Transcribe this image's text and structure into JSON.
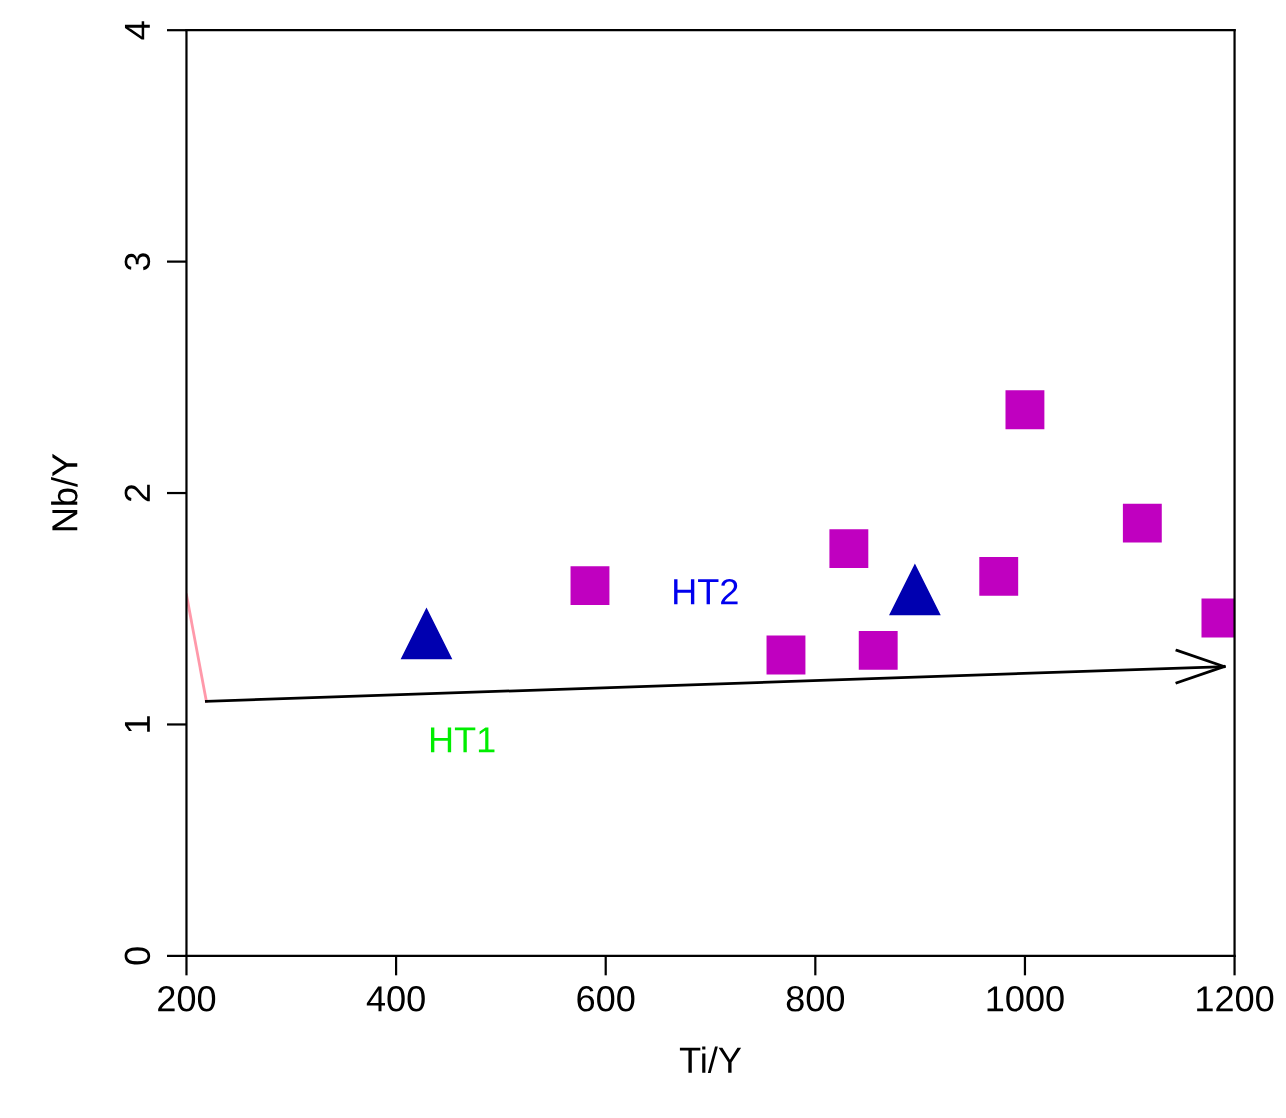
{
  "chart_data": {
    "type": "scatter",
    "xlabel": "Ti/Y",
    "ylabel": "Nb/Y",
    "xlim": [
      200,
      1200
    ],
    "ylim": [
      0,
      4
    ],
    "xticks": [
      200,
      400,
      600,
      800,
      1000,
      1200
    ],
    "yticks": [
      0,
      1,
      2,
      3,
      4
    ],
    "grid": false,
    "legend": false,
    "series": [
      {
        "marker": "square",
        "color": "#c000c0",
        "x": [
          585,
          772,
          832,
          860,
          975,
          1000,
          1112,
          1187
        ],
        "values": [
          1.6,
          1.3,
          1.76,
          1.32,
          1.64,
          2.36,
          1.87,
          1.46
        ]
      },
      {
        "marker": "triangle",
        "color": "#0000b0",
        "x": [
          429,
          895
        ],
        "values": [
          1.39,
          1.58
        ]
      },
      {
        "type": "line",
        "marker": "none",
        "color": "#ff99aa",
        "x": [
          200,
          219
        ],
        "values": [
          1.56,
          1.1
        ]
      },
      {
        "type": "line",
        "marker": "none",
        "color": "#000000",
        "x": [
          219,
          1190
        ],
        "values": [
          1.1,
          1.25
        ]
      }
    ],
    "annotations": [
      "HT2",
      "HT1"
    ]
  }
}
